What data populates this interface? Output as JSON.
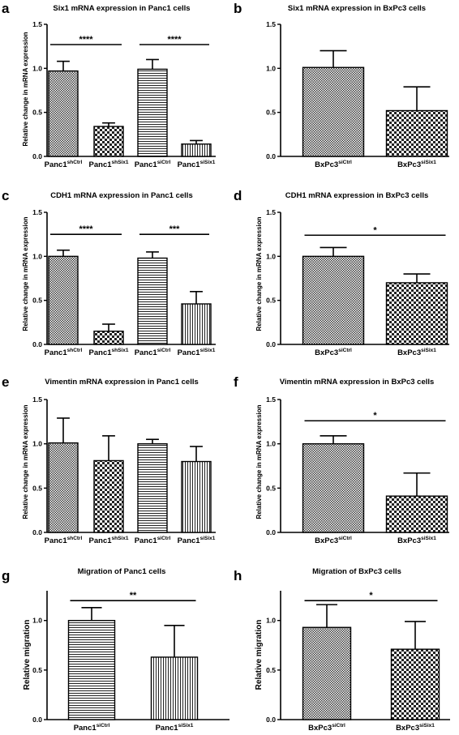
{
  "chart_data": [
    {
      "panel": "a",
      "type": "bar",
      "title": "Six1 mRNA expression in Panc1 cells",
      "ylabel": "Relative change in mRNA expression",
      "ylim": [
        0,
        1.5
      ],
      "yticks": [
        "0.0",
        "0.5",
        "1.0",
        "1.5"
      ],
      "categories": [
        {
          "base": "Panc1",
          "sup": "shCtrl"
        },
        {
          "base": "Panc1",
          "sup": "shSix1"
        },
        {
          "base": "Panc1",
          "sup": "siCtrl"
        },
        {
          "base": "Panc1",
          "sup": "siSix1"
        }
      ],
      "values": [
        0.97,
        0.34,
        0.99,
        0.14
      ],
      "errors": [
        0.11,
        0.04,
        0.11,
        0.04
      ],
      "patterns": [
        "fine",
        "check",
        "hstripe",
        "vstripe"
      ],
      "significance": [
        {
          "from": 0,
          "to": 1,
          "label": "****",
          "y": 1.27
        },
        {
          "from": 2,
          "to": 3,
          "label": "****",
          "y": 1.27
        }
      ]
    },
    {
      "panel": "b",
      "type": "bar",
      "title": "Six1 mRNA expression in  BxPc3 cells",
      "ylabel": "",
      "ylim": [
        0,
        1.5
      ],
      "yticks": [
        "0.0",
        "0.5",
        "1.0",
        "1.5"
      ],
      "categories": [
        {
          "base": "BxPc3",
          "sup": "siCtrl"
        },
        {
          "base": "BxPc3",
          "sup": "siSix1"
        }
      ],
      "values": [
        1.01,
        0.52
      ],
      "errors": [
        0.19,
        0.27
      ],
      "patterns": [
        "fine",
        "check"
      ],
      "significance": []
    },
    {
      "panel": "c",
      "type": "bar",
      "title": "CDH1 mRNA expression in  Panc1 cells",
      "ylabel": "Relative change in mRNA expression",
      "ylim": [
        0,
        1.5
      ],
      "yticks": [
        "0.0",
        "0.5",
        "1.0",
        "1.5"
      ],
      "categories": [
        {
          "base": "Panc1",
          "sup": "shCtrl"
        },
        {
          "base": "Panc1",
          "sup": "shSix1"
        },
        {
          "base": "Panc1",
          "sup": "siCtrl"
        },
        {
          "base": "Panc1",
          "sup": "siSix1"
        }
      ],
      "values": [
        1.0,
        0.15,
        0.98,
        0.46
      ],
      "errors": [
        0.07,
        0.08,
        0.07,
        0.14
      ],
      "patterns": [
        "fine",
        "check",
        "hstripe",
        "vstripe"
      ],
      "significance": [
        {
          "from": 0,
          "to": 1,
          "label": "****",
          "y": 1.25
        },
        {
          "from": 2,
          "to": 3,
          "label": "***",
          "y": 1.25
        }
      ]
    },
    {
      "panel": "d",
      "type": "bar",
      "title": "CDH1 mRNA expression  in  BxPc3 cells",
      "ylabel": "Relative change in mRNA expression",
      "ylim": [
        0,
        1.5
      ],
      "yticks": [
        "0.0",
        "0.5",
        "1.0",
        "1.5"
      ],
      "categories": [
        {
          "base": "BxPc3",
          "sup": "siCtrl"
        },
        {
          "base": "BxPc3",
          "sup": "siSix1"
        }
      ],
      "values": [
        1.0,
        0.7
      ],
      "errors": [
        0.1,
        0.1
      ],
      "patterns": [
        "fine",
        "check"
      ],
      "significance": [
        {
          "from": 0,
          "to": 1,
          "label": "*",
          "y": 1.24
        }
      ]
    },
    {
      "panel": "e",
      "type": "bar",
      "title": "Vimentin mRNA expression in  Panc1 cells",
      "ylabel": "Relative change in mRNA expression",
      "ylim": [
        0,
        1.5
      ],
      "yticks": [
        "0.0",
        "0.5",
        "1.0",
        "1.5"
      ],
      "categories": [
        {
          "base": "Panc1",
          "sup": "shCtrl"
        },
        {
          "base": "Panc1",
          "sup": "shSix1"
        },
        {
          "base": "Panc1",
          "sup": "siCtrl"
        },
        {
          "base": "Panc1",
          "sup": "siSix1"
        }
      ],
      "values": [
        1.01,
        0.81,
        1.0,
        0.8
      ],
      "errors": [
        0.28,
        0.28,
        0.05,
        0.17
      ],
      "patterns": [
        "fine",
        "check",
        "hstripe",
        "vstripe"
      ],
      "significance": []
    },
    {
      "panel": "f",
      "type": "bar",
      "title": "Vimentin mRNA expression in  BxPc3 cells",
      "ylabel": "Relative change in mRNA expression",
      "ylim": [
        0,
        1.5
      ],
      "yticks": [
        "0.0",
        "0.5",
        "1.0",
        "1.5"
      ],
      "categories": [
        {
          "base": "BxPc3",
          "sup": "siCtrl"
        },
        {
          "base": "BxPc3",
          "sup": "siSix1"
        }
      ],
      "values": [
        1.0,
        0.41
      ],
      "errors": [
        0.09,
        0.26
      ],
      "patterns": [
        "fine",
        "check"
      ],
      "significance": [
        {
          "from": 0,
          "to": 1,
          "label": "*",
          "y": 1.26
        }
      ]
    },
    {
      "panel": "g",
      "type": "bar",
      "title": "Migration of Panc1 cells",
      "ylabel": "Relative migration",
      "ylim": [
        0,
        1.3
      ],
      "yticks": [
        "0.0",
        "0.5",
        "1.0"
      ],
      "categories": [
        {
          "base": "Panc1",
          "sup": "siCtrl"
        },
        {
          "base": "Panc1",
          "sup": "siSix1"
        }
      ],
      "values": [
        1.0,
        0.63
      ],
      "errors": [
        0.13,
        0.32
      ],
      "patterns": [
        "hstripe",
        "vstripe"
      ],
      "significance": [
        {
          "from": 0,
          "to": 1,
          "label": "**",
          "y": 1.2
        }
      ]
    },
    {
      "panel": "h",
      "type": "bar",
      "title": "Migration of BxPc3 cells",
      "ylabel": "Relative migration",
      "ylim": [
        0,
        1.3
      ],
      "yticks": [
        "0.0",
        "0.5",
        "1.0"
      ],
      "categories": [
        {
          "base": "BxPc3",
          "sup": "siCtrl"
        },
        {
          "base": "BxPc3",
          "sup": "siSix1"
        }
      ],
      "values": [
        0.93,
        0.71
      ],
      "errors": [
        0.23,
        0.28
      ],
      "patterns": [
        "fine",
        "check"
      ],
      "significance": [
        {
          "from": 0,
          "to": 1,
          "label": "*",
          "y": 1.2
        }
      ]
    }
  ]
}
